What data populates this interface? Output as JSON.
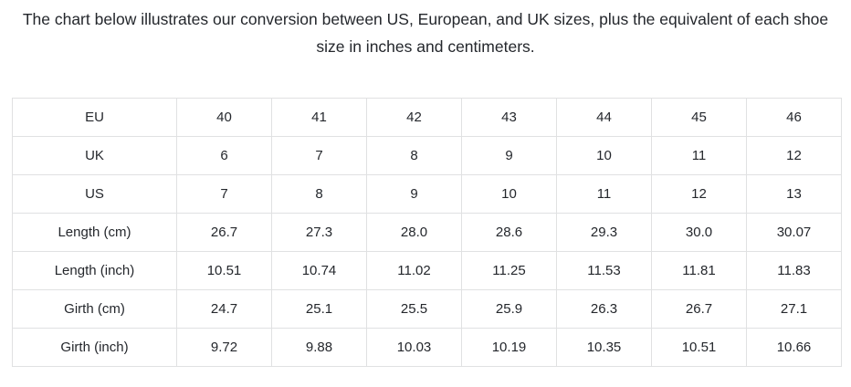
{
  "title": "The chart below illustrates our conversion between US, European, and UK sizes, plus the equivalent of each shoe size in inches and centimeters.",
  "chart_data": {
    "type": "table",
    "rows": [
      {
        "label": "EU",
        "values": [
          "40",
          "41",
          "42",
          "43",
          "44",
          "45",
          "46"
        ]
      },
      {
        "label": "UK",
        "values": [
          "6",
          "7",
          "8",
          "9",
          "10",
          "11",
          "12"
        ]
      },
      {
        "label": "US",
        "values": [
          "7",
          "8",
          "9",
          "10",
          "11",
          "12",
          "13"
        ]
      },
      {
        "label": "Length (cm)",
        "values": [
          "26.7",
          "27.3",
          "28.0",
          "28.6",
          "29.3",
          "30.0",
          "30.07"
        ]
      },
      {
        "label": "Length (inch)",
        "values": [
          "10.51",
          "10.74",
          "11.02",
          "11.25",
          "11.53",
          "11.81",
          "11.83"
        ]
      },
      {
        "label": "Girth (cm)",
        "values": [
          "24.7",
          "25.1",
          "25.5",
          "25.9",
          "26.3",
          "26.7",
          "27.1"
        ]
      },
      {
        "label": "Girth (inch)",
        "values": [
          "9.72",
          "9.88",
          "10.03",
          "10.19",
          "10.35",
          "10.51",
          "10.66"
        ]
      }
    ]
  },
  "colors": {
    "text": "#24272c",
    "border": "#e0e1e2",
    "background": "#ffffff"
  }
}
